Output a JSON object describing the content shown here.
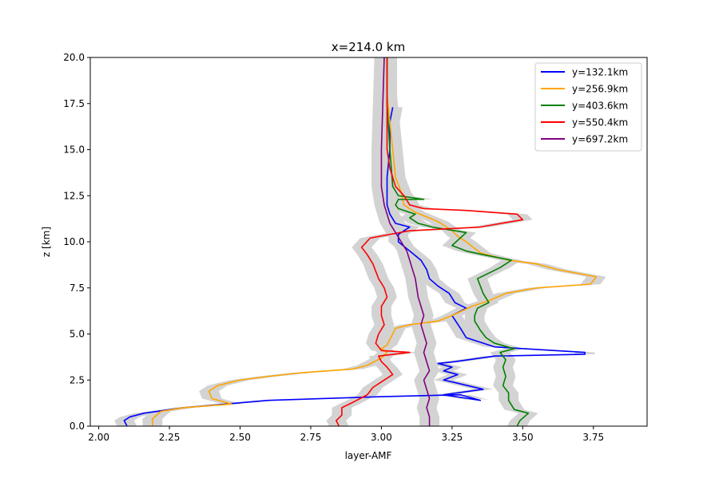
{
  "chart_data": {
    "type": "line",
    "title": "x=214.0 km",
    "xlabel": "layer-AMF",
    "ylabel": "z [km]",
    "xlim": [
      1.97,
      3.94
    ],
    "ylim": [
      0,
      20
    ],
    "xticks": [
      "2.00",
      "2.25",
      "2.50",
      "2.75",
      "3.00",
      "3.25",
      "3.50",
      "3.75"
    ],
    "yticks": [
      "0.0",
      "2.5",
      "5.0",
      "7.5",
      "10.0",
      "12.5",
      "15.0",
      "17.5",
      "20.0"
    ],
    "legend_position": "top-right",
    "uncertainty_band": {
      "color": "#d3d3d3",
      "half_width": 0.035
    },
    "series": [
      {
        "name": "y=132.1km",
        "color": "#0000ff",
        "x": [
          2.1,
          2.09,
          2.11,
          2.16,
          2.3,
          2.6,
          3.0,
          3.28,
          3.35,
          3.22,
          3.36,
          3.25,
          3.22,
          3.27,
          3.22,
          3.25,
          3.2,
          3.26,
          3.4,
          3.72,
          3.72,
          3.4,
          3.3,
          3.28,
          3.25,
          3.3,
          3.26,
          3.24,
          3.2,
          3.17,
          3.16,
          3.14,
          3.1,
          3.06,
          3.06,
          3.1,
          3.05,
          3.03,
          3.02,
          3.02,
          3.03,
          3.03,
          3.04
        ],
        "y": [
          0.0,
          0.3,
          0.5,
          0.7,
          1.0,
          1.4,
          1.6,
          1.7,
          1.4,
          1.7,
          2.0,
          2.4,
          2.5,
          2.8,
          3.0,
          3.2,
          3.4,
          3.5,
          3.8,
          3.9,
          4.0,
          4.3,
          4.8,
          5.3,
          6.0,
          6.4,
          6.7,
          7.2,
          7.6,
          8.0,
          8.5,
          9.0,
          9.5,
          10.0,
          10.4,
          10.8,
          11.0,
          11.5,
          12.0,
          13.5,
          15.0,
          16.5,
          17.3
        ]
      },
      {
        "name": "y=256.9km",
        "color": "#ffa500",
        "x": [
          2.19,
          2.19,
          2.22,
          2.3,
          2.47,
          2.4,
          2.39,
          2.42,
          2.5,
          2.6,
          2.72,
          2.9,
          2.95,
          3.0,
          3.02,
          3.0,
          3.02,
          3.03,
          3.04,
          3.05,
          3.1,
          3.2,
          3.25,
          3.32,
          3.38,
          3.44,
          3.55,
          3.74,
          3.76,
          3.62,
          3.55,
          3.45,
          3.35,
          3.3,
          3.27,
          3.25,
          3.2,
          3.12,
          3.08,
          3.07,
          3.05,
          3.04,
          3.03,
          3.02,
          3.02
        ],
        "y": [
          0.0,
          0.4,
          0.8,
          1.0,
          1.2,
          1.5,
          1.9,
          2.2,
          2.5,
          2.7,
          2.9,
          3.1,
          3.3,
          3.7,
          4.0,
          4.2,
          4.4,
          4.7,
          5.0,
          5.3,
          5.5,
          5.7,
          6.0,
          6.5,
          6.8,
          7.2,
          7.5,
          7.7,
          8.1,
          8.5,
          8.8,
          9.0,
          9.4,
          10.0,
          10.3,
          10.6,
          11.1,
          11.6,
          12.0,
          12.7,
          13.5,
          15.0,
          16.5,
          18.0,
          20.0
        ]
      },
      {
        "name": "y=403.6km",
        "color": "#008000",
        "x": [
          3.48,
          3.49,
          3.52,
          3.47,
          3.45,
          3.45,
          3.43,
          3.44,
          3.43,
          3.44,
          3.42,
          3.47,
          3.4,
          3.37,
          3.35,
          3.33,
          3.33,
          3.34,
          3.38,
          3.36,
          3.35,
          3.34,
          3.42,
          3.46,
          3.36,
          3.3,
          3.25,
          3.3,
          3.18,
          3.13,
          3.1,
          3.12,
          3.06,
          3.05,
          3.06,
          3.15,
          3.06,
          3.04,
          3.03,
          3.02,
          3.02
        ],
        "y": [
          0.0,
          0.3,
          0.7,
          0.9,
          1.4,
          1.8,
          2.2,
          2.7,
          3.2,
          3.6,
          4.0,
          4.2,
          4.5,
          4.8,
          5.2,
          5.7,
          6.0,
          6.4,
          6.7,
          7.2,
          7.6,
          8.0,
          8.6,
          9.0,
          9.3,
          9.5,
          9.8,
          10.5,
          10.8,
          11.0,
          11.3,
          11.5,
          11.8,
          12.0,
          12.3,
          12.3,
          12.5,
          13.0,
          15.0,
          17.5,
          20.0
        ]
      },
      {
        "name": "y=550.4km",
        "color": "#ff0000",
        "x": [
          2.85,
          2.84,
          2.86,
          2.86,
          2.9,
          2.95,
          2.97,
          3.0,
          3.04,
          3.02,
          3.0,
          2.99,
          3.1,
          3.0,
          2.98,
          2.99,
          3.01,
          3.0,
          3.0,
          3.02,
          3.01,
          2.99,
          2.98,
          2.97,
          2.95,
          2.93,
          2.96,
          3.1,
          3.35,
          3.5,
          3.48,
          3.3,
          3.15,
          3.1,
          3.08,
          3.05,
          3.03,
          3.02,
          3.02,
          3.02,
          3.02
        ],
        "y": [
          0.0,
          0.3,
          0.6,
          1.0,
          1.3,
          1.7,
          2.1,
          2.4,
          2.8,
          3.2,
          3.5,
          3.8,
          4.0,
          4.1,
          4.5,
          5.0,
          5.5,
          6.0,
          6.5,
          7.0,
          7.5,
          8.0,
          8.4,
          8.8,
          9.3,
          9.7,
          10.2,
          10.6,
          10.8,
          11.2,
          11.5,
          11.7,
          11.8,
          12.0,
          12.5,
          13.0,
          14.0,
          15.0,
          16.0,
          18.0,
          20.0
        ]
      },
      {
        "name": "y=697.2km",
        "color": "#800080",
        "x": [
          3.17,
          3.17,
          3.16,
          3.17,
          3.16,
          3.15,
          3.17,
          3.16,
          3.15,
          3.16,
          3.15,
          3.14,
          3.15,
          3.13,
          3.12,
          3.1,
          3.09,
          3.07,
          3.05,
          3.03,
          3.02,
          3.01,
          3.0,
          3.0,
          3.01
        ],
        "y": [
          0.0,
          0.5,
          1.0,
          1.5,
          2.0,
          2.5,
          3.0,
          3.5,
          4.0,
          4.5,
          5.0,
          5.5,
          6.0,
          7.0,
          8.0,
          9.0,
          9.5,
          10.0,
          10.5,
          11.0,
          11.5,
          12.0,
          13.0,
          15.0,
          20.0
        ]
      }
    ]
  }
}
